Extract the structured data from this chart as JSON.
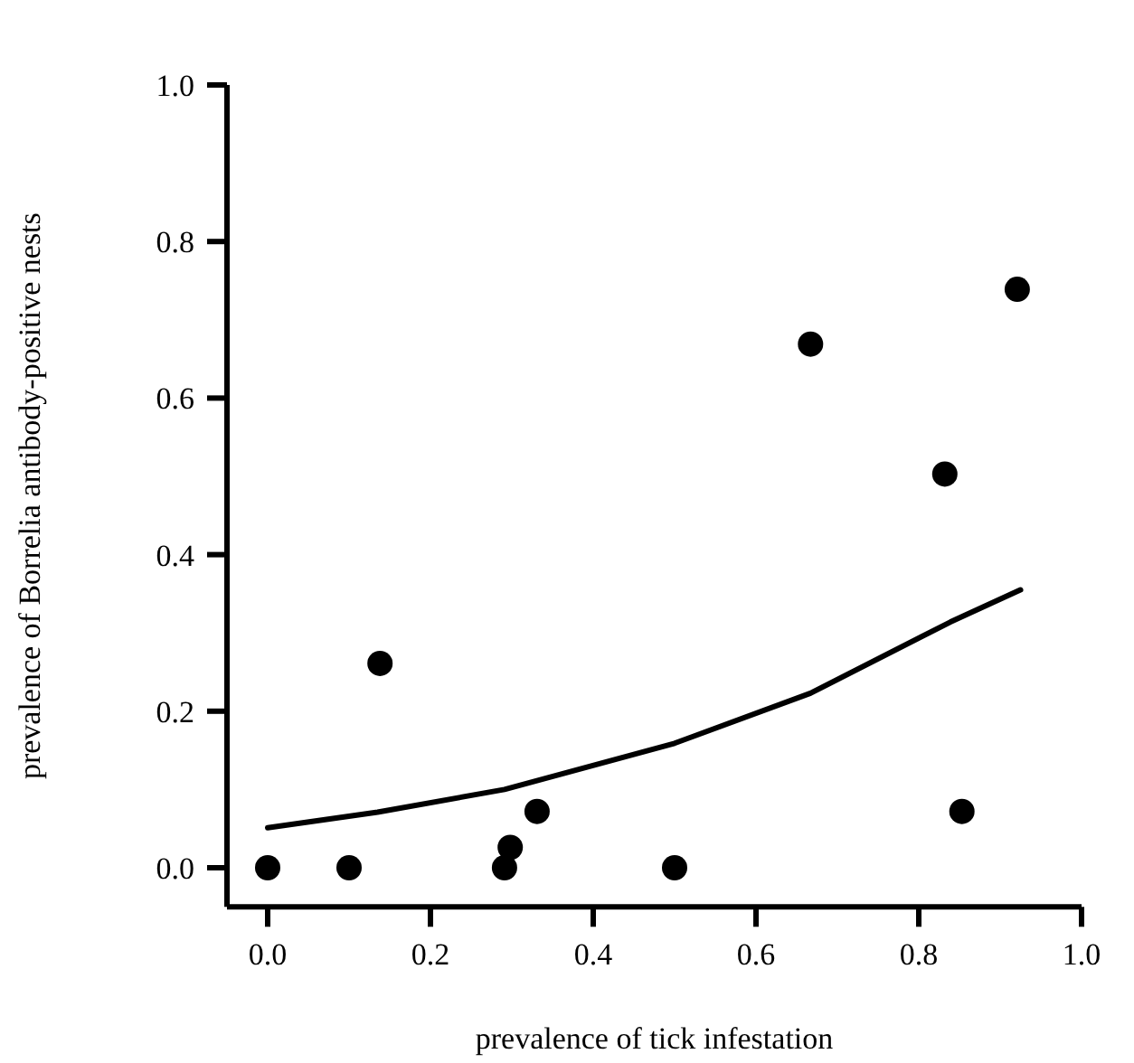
{
  "chart_data": {
    "type": "scatter",
    "xlabel": "prevalence of tick infestation",
    "ylabel": "prevalence of Borrelia antibody-positive nests",
    "xlim": [
      -0.05,
      1.0
    ],
    "ylim": [
      -0.05,
      1.0
    ],
    "xticks": [
      {
        "value": 0,
        "label": "0.0"
      },
      0.2,
      0.4,
      0.6,
      0.8,
      {
        "value": 1,
        "label": "1.0"
      }
    ],
    "yticks": [
      {
        "value": 0,
        "label": "0.0"
      },
      0.2,
      0.4,
      0.6,
      0.8,
      {
        "value": 1,
        "label": "1.0"
      }
    ],
    "grid": false,
    "marker": "circle",
    "series": [
      {
        "color": "#000000",
        "x": [
          0,
          0.1,
          0.138,
          0.291,
          0.298,
          0.331,
          0.5,
          0.667,
          0.832,
          0.853,
          0.921
        ],
        "values": [
          0,
          0,
          0.261,
          0,
          0.026,
          0.072,
          0,
          0.669,
          0.503,
          0.072,
          0.739
        ]
      },
      {
        "type": "line",
        "color": "#000000",
        "line_style": "solid",
        "marker": "none",
        "x": [
          0,
          0.135,
          0.291,
          0.5,
          0.667,
          0.839,
          0.925
        ],
        "values": [
          0.051,
          0.071,
          0.1,
          0.159,
          0.223,
          0.314,
          0.355
        ]
      }
    ]
  }
}
